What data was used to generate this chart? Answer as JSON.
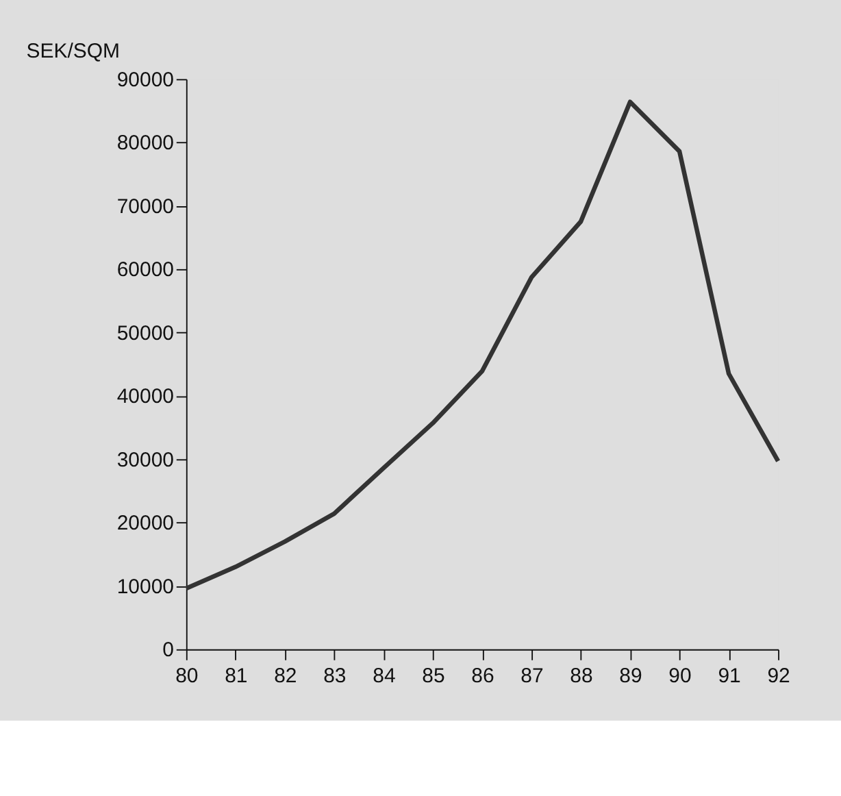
{
  "chart_data": {
    "type": "line",
    "ylabel": "SEK/SQM",
    "categories": [
      "80",
      "81",
      "82",
      "83",
      "84",
      "85",
      "86",
      "87",
      "88",
      "89",
      "90",
      "91",
      "92"
    ],
    "series": [
      {
        "color": "#333333",
        "values": [
          9600,
          13000,
          17000,
          21400,
          28600,
          35700,
          43900,
          58700,
          67500,
          86400,
          78600,
          43500,
          29700
        ]
      }
    ],
    "ylim": [
      0,
      90000
    ],
    "yticks": [
      0,
      10000,
      20000,
      30000,
      40000,
      50000,
      60000,
      70000,
      80000,
      90000
    ],
    "marker": "none",
    "line_style": "solid"
  }
}
